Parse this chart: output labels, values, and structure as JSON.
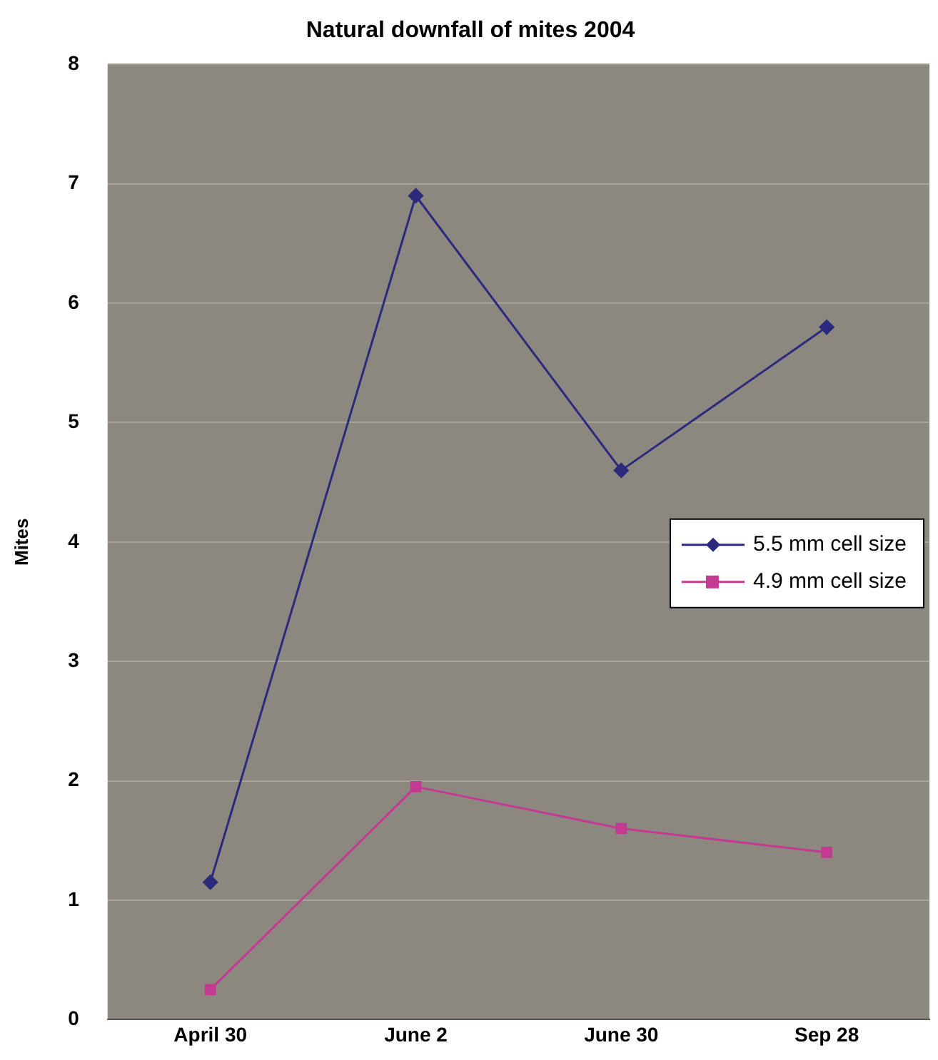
{
  "chart_data": {
    "type": "line",
    "title": "Natural downfall of mites 2004",
    "ylabel": "Mites",
    "categories": [
      "April 30",
      "June 2",
      "June 30",
      "Sep 28"
    ],
    "series": [
      {
        "name": "5.5 mm cell size",
        "color": "#2b2a7c",
        "values": [
          1.15,
          6.9,
          4.6,
          5.8
        ],
        "marker": "diamond"
      },
      {
        "name": "4.9 mm cell size",
        "color": "#c43a93",
        "values": [
          0.25,
          1.95,
          1.6,
          1.4
        ],
        "marker": "square"
      }
    ],
    "ylim": [
      0,
      8
    ],
    "yticks": [
      0,
      1,
      2,
      3,
      4,
      5,
      6,
      7,
      8
    ],
    "grid": "y",
    "legend": "right",
    "line_style": "solid"
  }
}
